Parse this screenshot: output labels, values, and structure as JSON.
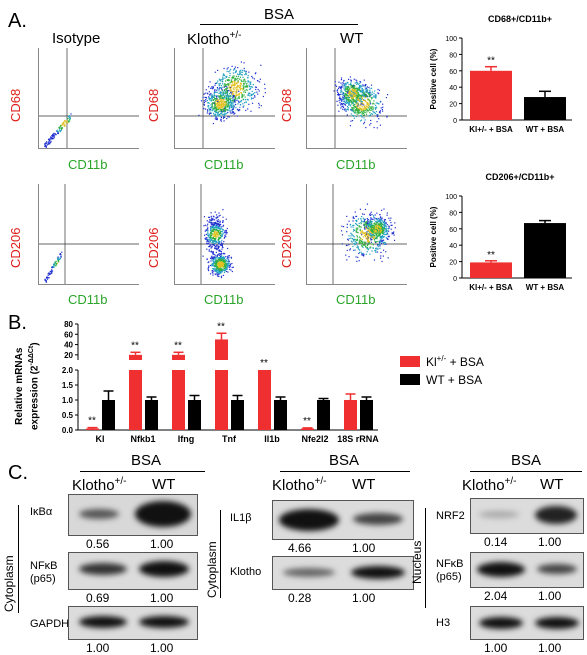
{
  "panelA": {
    "label": "A.",
    "bsa": "BSA",
    "col_isotype": "Isotype",
    "col_klotho": "Klotho",
    "col_klotho_sup": "+/-",
    "col_wt": "WT",
    "y_cd68": "CD68",
    "y_cd206": "CD206",
    "x_cd11b": "CD11b",
    "chart1_title": "CD68+/CD11b+",
    "chart2_title": "CD206+/CD11b+"
  },
  "panelB": {
    "label": "B.",
    "ylabel_line1": "Relative mRNAs",
    "ylabel_line2": "expression (2",
    "ylabel_sup": "-ΔΔCt",
    "ylabel_end": ")",
    "legend_kl": "Kl",
    "legend_kl_sup": "+/-",
    "legend_kl_rest": " + BSA",
    "legend_wt": "WT + BSA"
  },
  "panelC": {
    "label": "C.",
    "bsa": "BSA",
    "klotho": "Klotho",
    "klotho_sup": "+/-",
    "wt": "WT",
    "cytoplasm": "Cytoplasm",
    "nucleus": "Nucleus",
    "rows1": [
      "IκBα",
      "NFκB",
      "(p65)",
      "GAPDH"
    ],
    "q1": [
      "0.56",
      "1.00",
      "0.69",
      "1.00",
      "1.00",
      "1.00"
    ],
    "rows2": [
      "IL1β",
      "Klotho"
    ],
    "q2": [
      "4.66",
      "1.00",
      "0.28",
      "1.00"
    ],
    "rows3": [
      "NRF2",
      "NFκB",
      "(p65)",
      "H3"
    ],
    "q3": [
      "0.14",
      "1.00",
      "2.04",
      "1.00",
      "1.00",
      "1.00"
    ]
  },
  "colors": {
    "red": "#f03030",
    "black": "#000000",
    "label_red": "#e0201b",
    "label_green": "#2aa52a"
  },
  "chart_data": [
    {
      "type": "bar",
      "title": "CD68+/CD11b+",
      "ylabel": "Positive cell (%)",
      "categories": [
        "Kl+/- + BSA",
        "WT + BSA"
      ],
      "values": [
        60,
        28
      ],
      "errors": [
        5,
        7
      ],
      "ylim": [
        0,
        100
      ],
      "yticks": [
        "0",
        "20",
        "40",
        "60",
        "80",
        "100"
      ],
      "significance": [
        "**",
        ""
      ]
    },
    {
      "type": "bar",
      "title": "CD206+/CD11b+",
      "ylabel": "Positive cell (%)",
      "categories": [
        "Kl+/- + BSA",
        "WT + BSA"
      ],
      "values": [
        19,
        67
      ],
      "errors": [
        2,
        3
      ],
      "ylim": [
        0,
        100
      ],
      "yticks": [
        "0",
        "20",
        "40",
        "60",
        "80",
        "100"
      ],
      "significance": [
        "**",
        ""
      ]
    },
    {
      "type": "bar",
      "categories": [
        "Kl",
        "Nfkb1",
        "Ifng",
        "Tnf",
        "Il1b",
        "Nfe2l2",
        "18S rRNA"
      ],
      "series": [
        {
          "name": "Kl+/- + BSA",
          "values": [
            0.05,
            20,
            20,
            50,
            2.0,
            0.05,
            1.0
          ],
          "errors": [
            0.03,
            5,
            5,
            12,
            0,
            0.02,
            0.2
          ]
        },
        {
          "name": "WT + BSA",
          "values": [
            1.0,
            1.0,
            1.0,
            1.0,
            1.0,
            1.0,
            1.0
          ],
          "errors": [
            0.3,
            0.1,
            0.15,
            0.15,
            0.1,
            0.05,
            0.1
          ]
        }
      ],
      "yticks": [
        "0.0",
        "0.5",
        "1.0",
        "1.5",
        "2.0",
        "20",
        "40",
        "60",
        "80"
      ],
      "significance": [
        "**",
        "**",
        "**",
        "**",
        "**",
        "**",
        ""
      ]
    }
  ]
}
